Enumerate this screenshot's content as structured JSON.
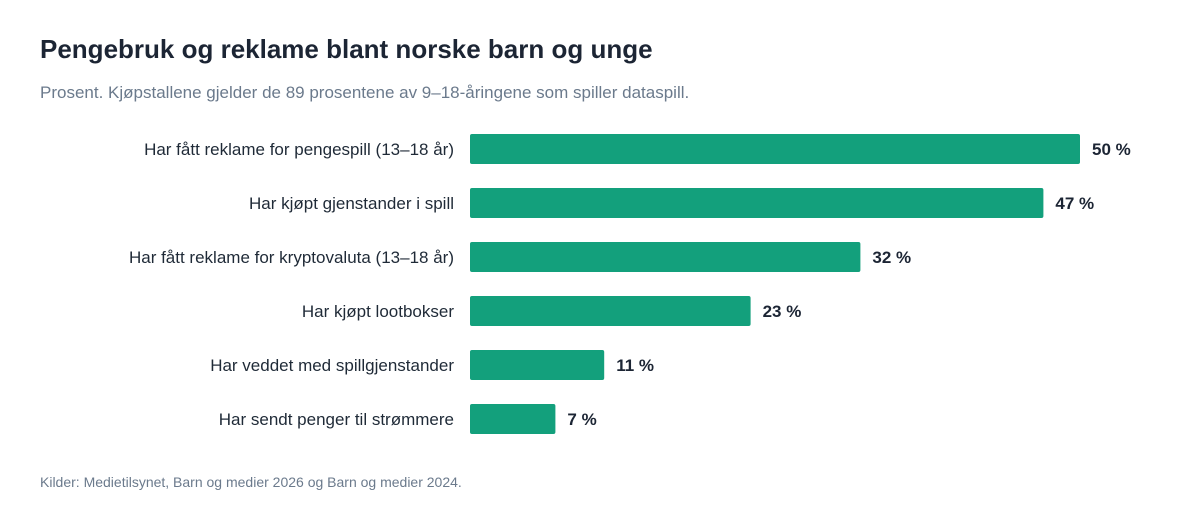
{
  "chart_data": {
    "type": "bar",
    "orientation": "horizontal",
    "title": "Pengebruk og reklame blant norske barn og unge",
    "subtitle": "Prosent. Kjøpstallene gjelder de 89 prosentene av 9–18-åringene som spiller dataspill.",
    "categories": [
      "Har fått reklame for pengespill (13–18 år)",
      "Har kjøpt gjenstander i spill",
      "Har fått reklame for kryptovaluta (13–18 år)",
      "Har kjøpt lootbokser",
      "Har veddet med spillgjenstander",
      "Har sendt penger til strømmere"
    ],
    "values": [
      50,
      47,
      32,
      23,
      11,
      7
    ],
    "value_labels": [
      "50 %",
      "47 %",
      "32 %",
      "23 %",
      "11 %",
      "7 %"
    ],
    "unit": "%",
    "xlim": [
      0,
      50
    ],
    "grid": false,
    "bar_color": "#13a07c",
    "source": "Kilder: Medietilsynet, Barn og medier 2026 og Barn og medier 2024."
  }
}
